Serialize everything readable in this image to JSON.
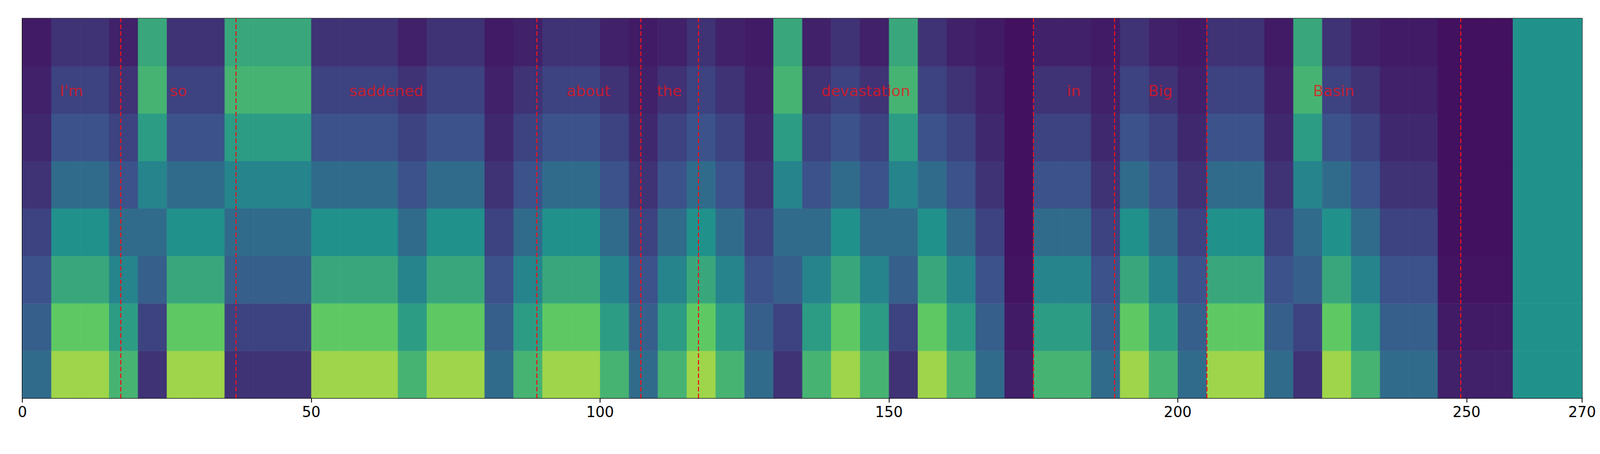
{
  "chart_data": {
    "type": "heatmap",
    "xlim": [
      0,
      270
    ],
    "xticks": [
      0,
      50,
      100,
      150,
      200,
      250
    ],
    "ylim": [
      0,
      80
    ],
    "yticks": [],
    "tick_labels": "x",
    "grid": false,
    "x_edges": [
      0,
      5,
      10,
      15,
      20,
      25,
      30,
      35,
      40,
      45,
      50,
      55,
      60,
      65,
      70,
      75,
      80,
      85,
      90,
      95,
      100,
      105,
      110,
      115,
      120,
      125,
      130,
      135,
      140,
      145,
      150,
      155,
      160,
      165,
      170,
      175,
      180,
      185,
      190,
      195,
      200,
      205,
      210,
      215,
      220,
      225,
      230,
      235,
      240,
      245,
      250,
      255,
      258,
      264,
      270
    ],
    "y_edges": [
      0,
      10,
      20,
      30,
      40,
      50,
      60,
      70,
      80
    ],
    "cells": [
      [
        0.35,
        0.3,
        0.25,
        0.2,
        0.15,
        0.12,
        0.1,
        0.08
      ],
      [
        0.85,
        0.75,
        0.6,
        0.5,
        0.35,
        0.25,
        0.2,
        0.15
      ],
      [
        0.85,
        0.75,
        0.6,
        0.5,
        0.35,
        0.25,
        0.2,
        0.15
      ],
      [
        0.65,
        0.55,
        0.45,
        0.35,
        0.25,
        0.2,
        0.15,
        0.1
      ],
      [
        0.15,
        0.2,
        0.3,
        0.35,
        0.45,
        0.55,
        0.65,
        0.6
      ],
      [
        0.85,
        0.75,
        0.6,
        0.5,
        0.35,
        0.25,
        0.2,
        0.15
      ],
      [
        0.85,
        0.75,
        0.6,
        0.5,
        0.35,
        0.25,
        0.2,
        0.15
      ],
      [
        0.15,
        0.2,
        0.3,
        0.35,
        0.45,
        0.55,
        0.65,
        0.6
      ],
      [
        0.15,
        0.2,
        0.3,
        0.35,
        0.45,
        0.55,
        0.65,
        0.6
      ],
      [
        0.15,
        0.2,
        0.3,
        0.35,
        0.45,
        0.55,
        0.65,
        0.6
      ],
      [
        0.85,
        0.75,
        0.6,
        0.5,
        0.35,
        0.25,
        0.2,
        0.15
      ],
      [
        0.85,
        0.75,
        0.6,
        0.5,
        0.35,
        0.25,
        0.2,
        0.15
      ],
      [
        0.85,
        0.75,
        0.6,
        0.5,
        0.35,
        0.25,
        0.2,
        0.15
      ],
      [
        0.65,
        0.55,
        0.45,
        0.35,
        0.25,
        0.2,
        0.15,
        0.1
      ],
      [
        0.85,
        0.75,
        0.6,
        0.5,
        0.35,
        0.25,
        0.2,
        0.15
      ],
      [
        0.85,
        0.75,
        0.6,
        0.5,
        0.35,
        0.25,
        0.2,
        0.15
      ],
      [
        0.35,
        0.3,
        0.25,
        0.2,
        0.15,
        0.12,
        0.1,
        0.08
      ],
      [
        0.65,
        0.55,
        0.45,
        0.35,
        0.25,
        0.2,
        0.15,
        0.1
      ],
      [
        0.85,
        0.75,
        0.6,
        0.5,
        0.35,
        0.25,
        0.2,
        0.15
      ],
      [
        0.85,
        0.75,
        0.6,
        0.5,
        0.35,
        0.25,
        0.2,
        0.15
      ],
      [
        0.65,
        0.55,
        0.45,
        0.35,
        0.25,
        0.2,
        0.15,
        0.1
      ],
      [
        0.35,
        0.3,
        0.25,
        0.2,
        0.15,
        0.12,
        0.1,
        0.08
      ],
      [
        0.65,
        0.55,
        0.45,
        0.35,
        0.25,
        0.2,
        0.15,
        0.1
      ],
      [
        0.85,
        0.75,
        0.6,
        0.5,
        0.35,
        0.25,
        0.2,
        0.15
      ],
      [
        0.65,
        0.55,
        0.45,
        0.35,
        0.25,
        0.2,
        0.15,
        0.1
      ],
      [
        0.35,
        0.3,
        0.25,
        0.2,
        0.15,
        0.12,
        0.1,
        0.08
      ],
      [
        0.15,
        0.2,
        0.3,
        0.35,
        0.45,
        0.55,
        0.65,
        0.6
      ],
      [
        0.65,
        0.55,
        0.45,
        0.35,
        0.25,
        0.2,
        0.15,
        0.1
      ],
      [
        0.85,
        0.75,
        0.6,
        0.5,
        0.35,
        0.25,
        0.2,
        0.15
      ],
      [
        0.65,
        0.55,
        0.45,
        0.35,
        0.25,
        0.2,
        0.15,
        0.1
      ],
      [
        0.15,
        0.2,
        0.3,
        0.35,
        0.45,
        0.55,
        0.65,
        0.6
      ],
      [
        0.85,
        0.75,
        0.6,
        0.5,
        0.35,
        0.25,
        0.2,
        0.15
      ],
      [
        0.65,
        0.55,
        0.45,
        0.35,
        0.25,
        0.2,
        0.15,
        0.1
      ],
      [
        0.35,
        0.3,
        0.25,
        0.2,
        0.15,
        0.12,
        0.1,
        0.08
      ],
      [
        0.1,
        0.08,
        0.06,
        0.05,
        0.05,
        0.05,
        0.05,
        0.05
      ],
      [
        0.65,
        0.55,
        0.45,
        0.35,
        0.25,
        0.2,
        0.15,
        0.1
      ],
      [
        0.65,
        0.55,
        0.45,
        0.35,
        0.25,
        0.2,
        0.15,
        0.1
      ],
      [
        0.35,
        0.3,
        0.25,
        0.2,
        0.15,
        0.12,
        0.1,
        0.08
      ],
      [
        0.85,
        0.75,
        0.6,
        0.5,
        0.35,
        0.25,
        0.2,
        0.15
      ],
      [
        0.65,
        0.55,
        0.45,
        0.35,
        0.25,
        0.2,
        0.15,
        0.1
      ],
      [
        0.35,
        0.3,
        0.25,
        0.2,
        0.15,
        0.12,
        0.1,
        0.08
      ],
      [
        0.85,
        0.75,
        0.6,
        0.5,
        0.35,
        0.25,
        0.2,
        0.15
      ],
      [
        0.85,
        0.75,
        0.6,
        0.5,
        0.35,
        0.25,
        0.2,
        0.15
      ],
      [
        0.35,
        0.3,
        0.25,
        0.2,
        0.15,
        0.12,
        0.1,
        0.08
      ],
      [
        0.15,
        0.2,
        0.3,
        0.35,
        0.45,
        0.55,
        0.65,
        0.6
      ],
      [
        0.85,
        0.75,
        0.6,
        0.5,
        0.35,
        0.25,
        0.2,
        0.15
      ],
      [
        0.65,
        0.55,
        0.45,
        0.35,
        0.25,
        0.2,
        0.15,
        0.1
      ],
      [
        0.35,
        0.3,
        0.25,
        0.2,
        0.15,
        0.12,
        0.1,
        0.08
      ],
      [
        0.35,
        0.3,
        0.25,
        0.2,
        0.15,
        0.12,
        0.1,
        0.08
      ],
      [
        0.1,
        0.08,
        0.06,
        0.05,
        0.05,
        0.05,
        0.05,
        0.05
      ],
      [
        0.1,
        0.08,
        0.06,
        0.05,
        0.05,
        0.05,
        0.05,
        0.05
      ],
      [
        0.1,
        0.08,
        0.06,
        0.05,
        0.05,
        0.05,
        0.05,
        0.05
      ],
      [
        0.5,
        0.5,
        0.5,
        0.5,
        0.5,
        0.5,
        0.5,
        0.5
      ],
      [
        0.5,
        0.5,
        0.5,
        0.5,
        0.5,
        0.5,
        0.5,
        0.5
      ]
    ],
    "segments": [
      {
        "word": "I'm",
        "start": 0,
        "end": 17
      },
      {
        "word": "so",
        "start": 17,
        "end": 37
      },
      {
        "word": "saddened",
        "start": 37,
        "end": 89
      },
      {
        "word": "about",
        "start": 89,
        "end": 107
      },
      {
        "word": "the",
        "start": 107,
        "end": 117
      },
      {
        "word": "devastation",
        "start": 117,
        "end": 175
      },
      {
        "word": "in",
        "start": 175,
        "end": 189
      },
      {
        "word": "Big",
        "start": 189,
        "end": 205
      },
      {
        "word": "Basin",
        "start": 205,
        "end": 249
      }
    ]
  }
}
